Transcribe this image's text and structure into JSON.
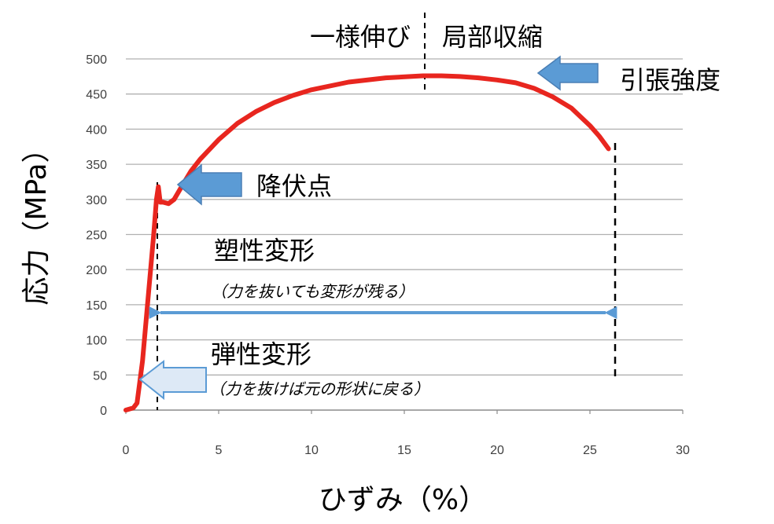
{
  "chart_data": {
    "type": "line",
    "xlabel": "ひずみ（%）",
    "ylabel": "応力（MPa）",
    "xlim": [
      0,
      30
    ],
    "ylim": [
      0,
      500
    ],
    "xticks": [
      "0",
      "5",
      "10",
      "15",
      "20",
      "25",
      "30"
    ],
    "yticks": [
      "0",
      "50",
      "100",
      "150",
      "200",
      "250",
      "300",
      "350",
      "400",
      "450",
      "500"
    ],
    "grid": "horizontal",
    "series": [
      {
        "color": "#e8261f",
        "x": [
          0,
          0.4,
          0.6,
          0.9,
          1.2,
          1.5,
          1.65,
          1.75,
          1.85,
          2.0,
          2.3,
          2.6,
          3.0,
          3.5,
          4.0,
          5.0,
          6.0,
          7.0,
          8.0,
          9.0,
          10.0,
          12.0,
          14.0,
          16.0,
          17.0,
          18.0,
          19.0,
          20.0,
          21.0,
          22.0,
          23.0,
          24.0,
          25.0,
          25.5,
          26.0
        ],
        "y": [
          0,
          3,
          10,
          70,
          160,
          250,
          300,
          318,
          296,
          296,
          294,
          300,
          318,
          340,
          357,
          385,
          408,
          425,
          438,
          448,
          456,
          467,
          473,
          476,
          476,
          475,
          473,
          470,
          466,
          458,
          446,
          430,
          405,
          390,
          372
        ]
      }
    ],
    "annotations": {
      "uniform_elongation": "一様伸び",
      "necking": "局部収縮",
      "tensile_strength": "引張強度",
      "yield_point": "降伏点",
      "plastic": "塑性変形",
      "plastic_note": "（力を抜いても変形が残る）",
      "elastic": "弾性変形",
      "elastic_note": "（力を抜けば元の形状に戻る）"
    },
    "colors": {
      "curve": "#e8261f",
      "arrow_fill": "#5b9bd5",
      "arrow_light_fill": "#dde9f6",
      "arrow_stroke": "#4a7fb5",
      "span_arrow": "#5b9bd5",
      "grid": "#b0b0b0"
    }
  }
}
